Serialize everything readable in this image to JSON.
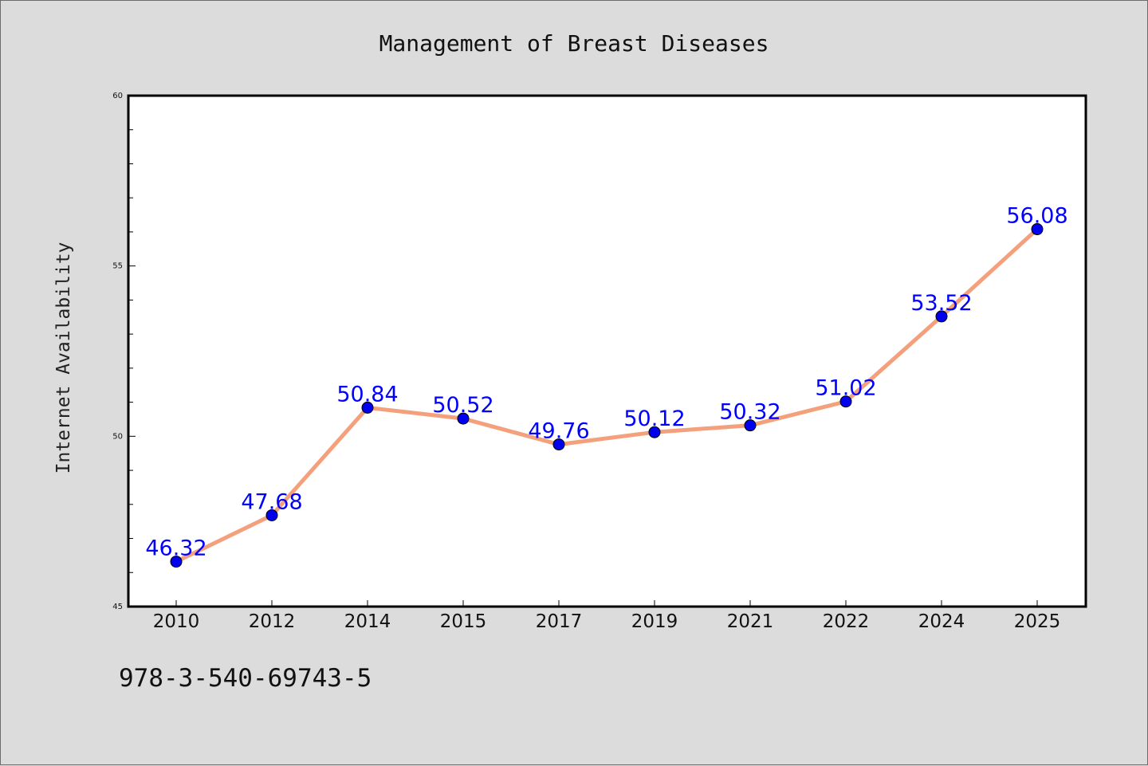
{
  "chart_data": {
    "type": "line",
    "title": "Management of Breast Diseases",
    "ylabel": "Internet Availability",
    "xlabel": "",
    "categories": [
      "2010",
      "2012",
      "2014",
      "2015",
      "2017",
      "2019",
      "2021",
      "2022",
      "2024",
      "2025"
    ],
    "series": [
      {
        "values": [
          46.32,
          47.68,
          50.84,
          50.52,
          49.76,
          50.12,
          50.32,
          51.02,
          53.52,
          56.08
        ]
      }
    ],
    "data_labels": [
      "46.32",
      "47.68",
      "50.84",
      "50.52",
      "49.76",
      "50.12",
      "50.32",
      "51.02",
      "53.52",
      "56.08"
    ],
    "ylim": [
      45,
      60
    ],
    "yticks": [
      45,
      50,
      55,
      60
    ],
    "ytick_labels": [
      "45",
      "50",
      "55",
      "60"
    ],
    "y_minor_step": 1,
    "grid": false,
    "legend": "none",
    "colors": {
      "line": "#f4a07d",
      "marker": "#0000ee",
      "label": "#0000ff",
      "background": "#dcdcdc",
      "plot_background": "#ffffff"
    }
  },
  "footer": {
    "isbn": "978-3-540-69743-5"
  }
}
